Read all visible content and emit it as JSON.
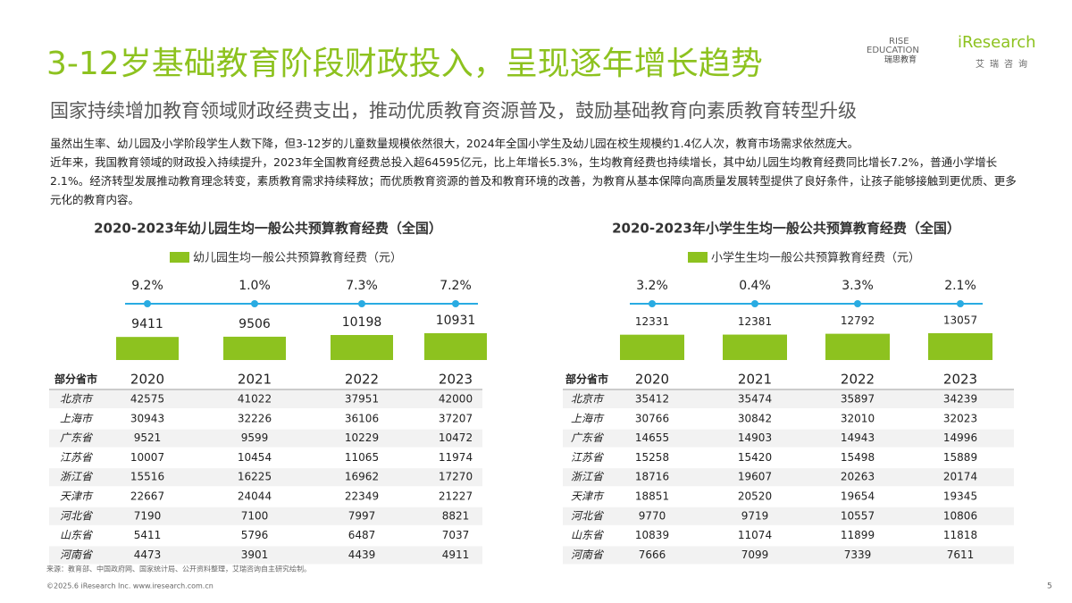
{
  "header": {
    "title": "3-12岁基础教育阶段财政投入，呈现逐年增长趋势",
    "subtitle": "国家持续增加教育领域财政经费支出，推动优质教育资源普及，鼓励基础教育向素质教育转型升级",
    "logos": {
      "rise_en_1": "RISE",
      "rise_en_2": "EDUCATION",
      "rise_cn": "瑞思教育",
      "iresearch_en": "iResearch",
      "iresearch_cn": "艾瑞咨询"
    }
  },
  "body": [
    "虽然出生率、幼儿园及小学阶段学生人数下降，但3-12岁的儿童数量规模依然很大，2024年全国小学生及幼儿园在校生规模约1.4亿人次，教育市场需求依然庞大。",
    "近年来，我国教育领域的财政投入持续提升，2023年全国教育经费总投入超64595亿元，比上年增长5.3%，生均教育经费也持续增长，其中幼儿园生均教育经费同比增长7.2%，普通小学增长2.1%。经济转型发展推动教育理念转变，素质教育需求持续释放；而优质教育资源的普及和教育环境的改善，为教育从基本保障向高质量发展转型提供了良好条件，让孩子能够接触到更优质、更多元化的教育内容。"
  ],
  "chart_data": [
    {
      "type": "bar",
      "title": "2020-2023年幼儿园生均一般公共预算教育经费（全国）",
      "categories": [
        "2020",
        "2021",
        "2022",
        "2023"
      ],
      "series": [
        {
          "name": "幼儿园生均一般公共预算教育经费（元）",
          "color": "#8dc21f",
          "values": [
            9411,
            9506,
            10198,
            10931
          ]
        }
      ],
      "growth": {
        "color": "#29abe2",
        "values": [
          9.2,
          1.0,
          7.3,
          7.2
        ],
        "value_labels": [
          "9.2%",
          "1.0%",
          "7.3%",
          "7.2%"
        ]
      }
    },
    {
      "type": "bar",
      "title": "2020-2023年小学生生均一般公共预算教育经费（全国）",
      "categories": [
        "2020",
        "2021",
        "2022",
        "2023"
      ],
      "series": [
        {
          "name": "小学生生均一般公共预算教育经费（元）",
          "color": "#8dc21f",
          "values": [
            12331,
            12381,
            12792,
            13057
          ]
        }
      ],
      "growth": {
        "color": "#29abe2",
        "values": [
          3.2,
          0.4,
          3.3,
          2.1
        ],
        "value_labels": [
          "3.2%",
          "0.4%",
          "3.3%",
          "2.1%"
        ]
      }
    }
  ],
  "tables": [
    {
      "corner": "部分省市",
      "rows": [
        [
          "北京市",
          42575,
          41022,
          37951,
          42000
        ],
        [
          "上海市",
          30943,
          32226,
          36106,
          37207
        ],
        [
          "广东省",
          9521,
          9599,
          10229,
          10472
        ],
        [
          "江苏省",
          10007,
          10454,
          11065,
          11974
        ],
        [
          "浙江省",
          15516,
          16225,
          16962,
          17270
        ],
        [
          "天津市",
          22667,
          24044,
          22349,
          21227
        ],
        [
          "河北省",
          7190,
          7100,
          7997,
          8821
        ],
        [
          "山东省",
          5411,
          5796,
          6487,
          7037
        ],
        [
          "河南省",
          4473,
          3901,
          4439,
          4911
        ]
      ]
    },
    {
      "corner": "部分省市",
      "rows": [
        [
          "北京市",
          35412,
          35474,
          35897,
          34239
        ],
        [
          "上海市",
          30766,
          30842,
          32010,
          32023
        ],
        [
          "广东省",
          14655,
          14903,
          14943,
          14996
        ],
        [
          "江苏省",
          15258,
          15420,
          15498,
          15889
        ],
        [
          "浙江省",
          18716,
          19607,
          20263,
          20174
        ],
        [
          "天津市",
          18851,
          20520,
          19654,
          19345
        ],
        [
          "河北省",
          9770,
          9719,
          10557,
          10806
        ],
        [
          "山东省",
          10839,
          11074,
          11899,
          11818
        ],
        [
          "河南省",
          7666,
          7099,
          7339,
          7611
        ]
      ]
    }
  ],
  "footer": {
    "source": "来源：教育部、中国政府网、国家统计局、公开资料整理，艾瑞咨询自主研究绘制。",
    "copyright": "©2025.6 iResearch Inc. www.iresearch.com.cn",
    "page": "5"
  }
}
